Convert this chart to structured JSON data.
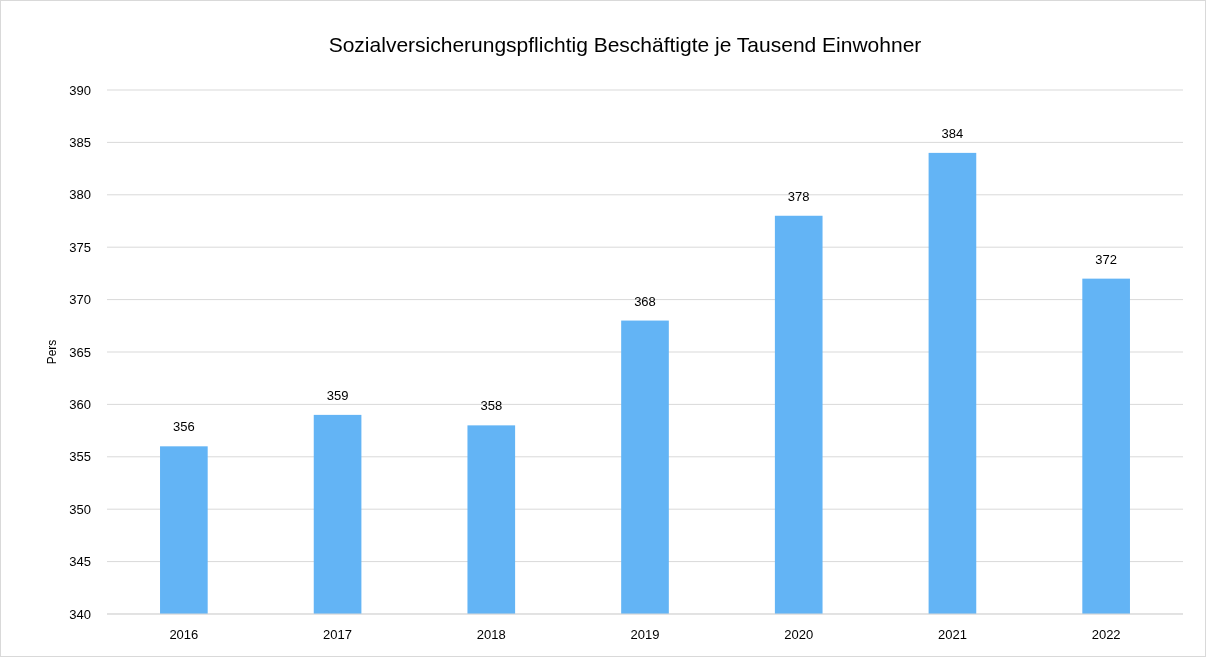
{
  "chart_data": {
    "type": "bar",
    "title": "Sozialversicherungspflichtig Beschäftigte je Tausend Einwohner",
    "ylabel": "Pers",
    "categories": [
      "2016",
      "2017",
      "2018",
      "2019",
      "2020",
      "2021",
      "2022"
    ],
    "values": [
      356,
      359,
      358,
      368,
      378,
      384,
      372
    ],
    "color": "#63b4f5",
    "ylim": [
      340,
      390
    ],
    "yticks": [
      340,
      345,
      350,
      355,
      360,
      365,
      370,
      375,
      380,
      385,
      390
    ],
    "grid": "y",
    "data_labels": true
  }
}
